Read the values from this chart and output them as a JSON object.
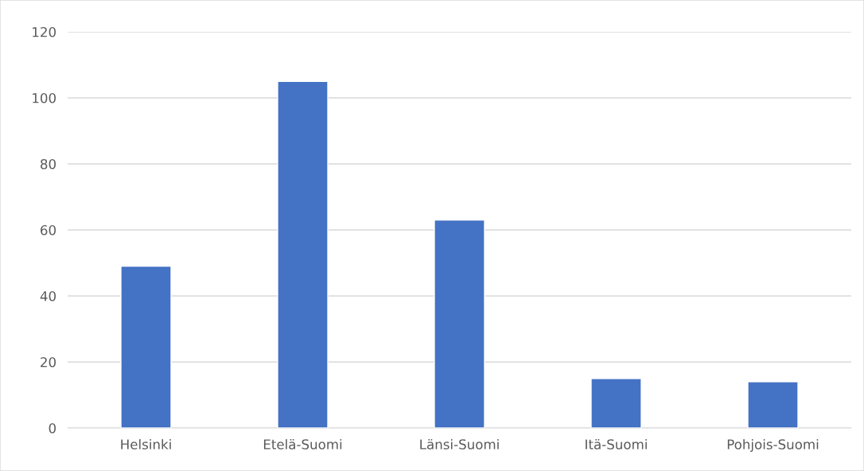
{
  "chart_data": {
    "type": "bar",
    "categories": [
      "Helsinki",
      "Etelä-Suomi",
      "Länsi-Suomi",
      "Itä-Suomi",
      "Pohjois-Suomi"
    ],
    "values": [
      49,
      105,
      63,
      15,
      14
    ],
    "color": "#4472c4",
    "ylim": [
      0,
      120
    ],
    "yticks": [
      0,
      20,
      40,
      60,
      80,
      100,
      120
    ],
    "grid": "y",
    "legend": false
  }
}
